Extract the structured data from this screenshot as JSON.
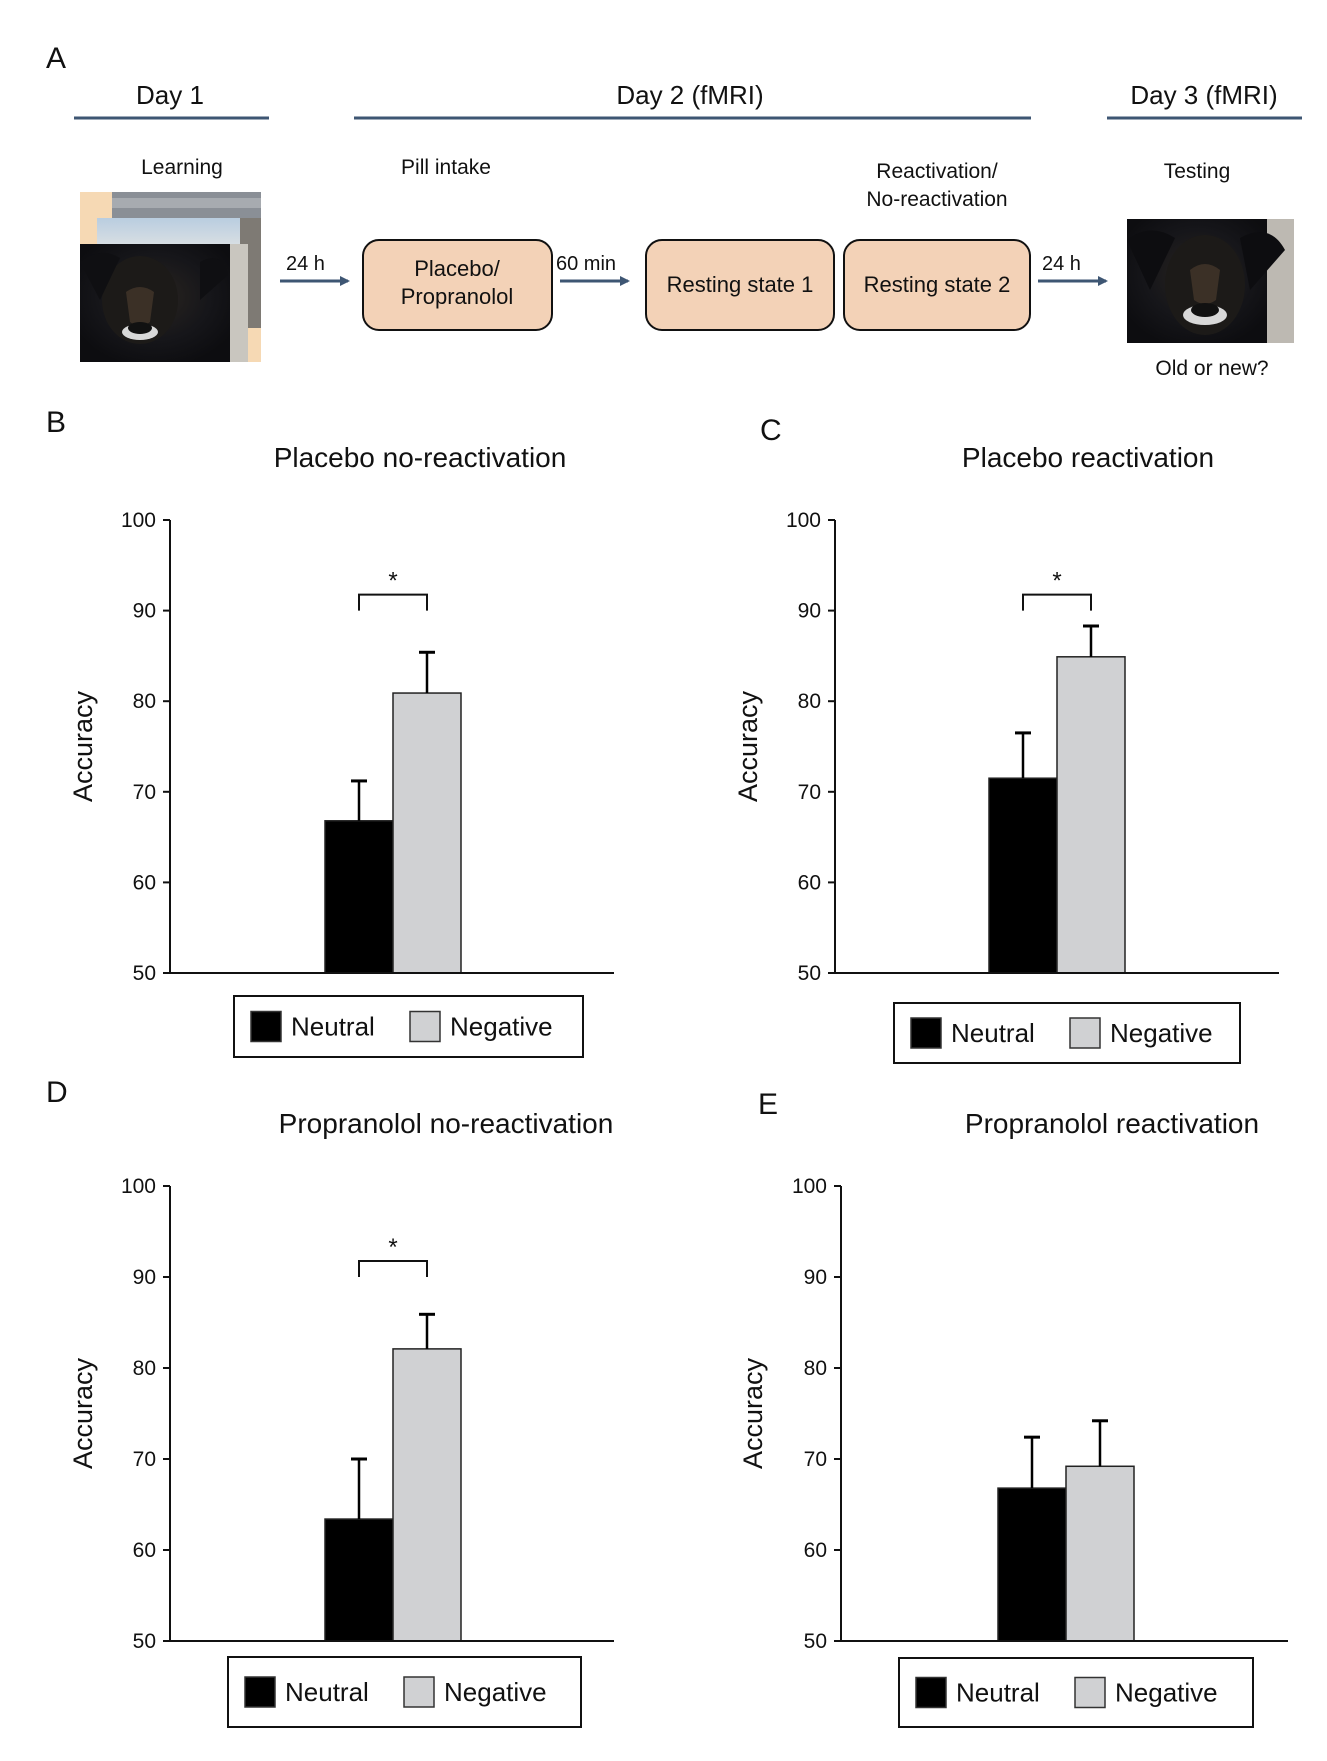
{
  "panel_a": {
    "label": "A",
    "days": [
      {
        "label": "Day 1"
      },
      {
        "label": "Day 2 (fMRI)"
      },
      {
        "label": "Day 3 (fMRI)"
      }
    ],
    "steps": {
      "learning": "Learning",
      "pill_intake": "Pill intake",
      "reactivation_line1": "Reactivation/",
      "reactivation_line2": "No-reactivation",
      "testing": "Testing",
      "old_or_new": "Old or new?"
    },
    "boxes": [
      {
        "lines": [
          "Placebo/",
          "Propranolol"
        ]
      },
      {
        "lines": [
          "Resting state 1"
        ]
      },
      {
        "lines": [
          "Resting state 2"
        ]
      }
    ],
    "arrows": [
      {
        "label": "24 h"
      },
      {
        "label": "60 min"
      },
      {
        "label": "24 h"
      }
    ],
    "images": [
      {
        "icon": "stacked-photos-dog-icon",
        "description": "stack of learning photos with barking dog"
      },
      {
        "icon": "dog-photo-icon",
        "description": "barking dog test photo"
      }
    ],
    "colors": {
      "line": "#3e5673",
      "box_fill": "#f3d2b7",
      "arrow": "#3e5673"
    }
  },
  "chart_data": [
    {
      "panel": "B",
      "type": "bar",
      "title": "Placebo no-reactivation",
      "xlabel": "",
      "ylabel": "Accuracy",
      "ylim": [
        50,
        100
      ],
      "yticks": [
        50,
        60,
        70,
        80,
        90,
        100
      ],
      "categories": [
        "Neutral",
        "Negative"
      ],
      "values": [
        66.8,
        80.9
      ],
      "error_upper": [
        71.2,
        85.4
      ],
      "colors": [
        "#000000",
        "#d0d1d3"
      ],
      "significance": {
        "label": "*",
        "between": [
          "Neutral",
          "Negative"
        ]
      },
      "legend": [
        "Neutral",
        "Negative"
      ],
      "legend_position": "bottom",
      "grid": false
    },
    {
      "panel": "C",
      "type": "bar",
      "title": "Placebo reactivation",
      "xlabel": "",
      "ylabel": "Accuracy",
      "ylim": [
        50,
        100
      ],
      "yticks": [
        50,
        60,
        70,
        80,
        90,
        100
      ],
      "categories": [
        "Neutral",
        "Negative"
      ],
      "values": [
        71.5,
        84.9
      ],
      "error_upper": [
        76.5,
        88.3
      ],
      "colors": [
        "#000000",
        "#d0d1d3"
      ],
      "significance": {
        "label": "*",
        "between": [
          "Neutral",
          "Negative"
        ]
      },
      "legend": [
        "Neutral",
        "Negative"
      ],
      "legend_position": "bottom",
      "grid": false
    },
    {
      "panel": "D",
      "type": "bar",
      "title": "Propranolol no-reactivation",
      "xlabel": "",
      "ylabel": "Accuracy",
      "ylim": [
        50,
        100
      ],
      "yticks": [
        50,
        60,
        70,
        80,
        90,
        100
      ],
      "categories": [
        "Neutral",
        "Negative"
      ],
      "values": [
        63.4,
        82.1
      ],
      "error_upper": [
        70.0,
        85.9
      ],
      "colors": [
        "#000000",
        "#d0d1d3"
      ],
      "significance": {
        "label": "*",
        "between": [
          "Neutral",
          "Negative"
        ]
      },
      "legend": [
        "Neutral",
        "Negative"
      ],
      "legend_position": "bottom",
      "grid": false
    },
    {
      "panel": "E",
      "type": "bar",
      "title": "Propranolol reactivation",
      "xlabel": "",
      "ylabel": "Accuracy",
      "ylim": [
        50,
        100
      ],
      "yticks": [
        50,
        60,
        70,
        80,
        90,
        100
      ],
      "categories": [
        "Neutral",
        "Negative"
      ],
      "values": [
        66.8,
        69.2
      ],
      "error_upper": [
        72.4,
        74.2
      ],
      "colors": [
        "#000000",
        "#d0d1d3"
      ],
      "significance": null,
      "legend": [
        "Neutral",
        "Negative"
      ],
      "legend_position": "bottom",
      "grid": false
    }
  ]
}
